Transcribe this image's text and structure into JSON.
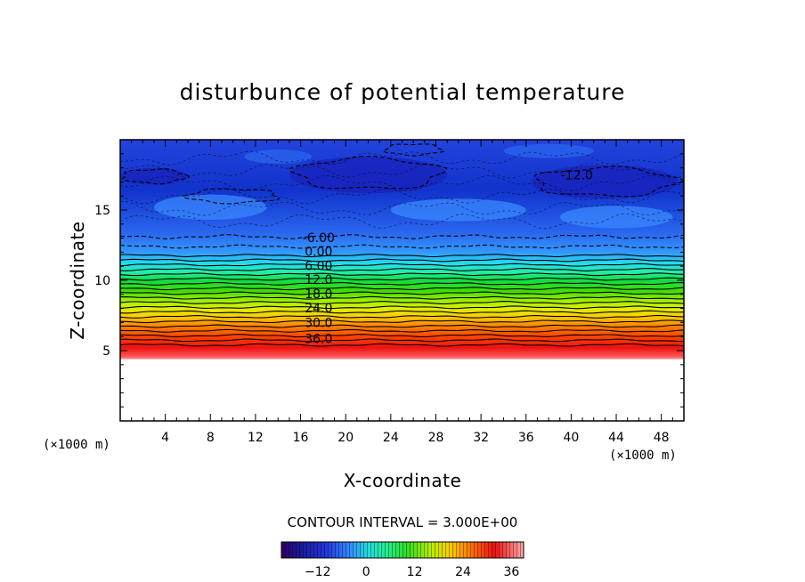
{
  "chart_data": {
    "type": "contour",
    "title": "disturbunce of potential temperature",
    "xlabel": "X-coordinate",
    "ylabel": "Z-coordinate",
    "x_unit": "(×1000 m)",
    "z_unit": "(×1000 m)",
    "xlim": [
      0,
      50
    ],
    "ylim": [
      0,
      20
    ],
    "x_ticks": [
      4,
      8,
      12,
      16,
      20,
      24,
      28,
      32,
      36,
      40,
      44,
      48
    ],
    "y_ticks": [
      5,
      10,
      15
    ],
    "contour_interval_text": "CONTOUR INTERVAL = 3.000E+00",
    "contour_interval": 3.0,
    "contour_labels": [
      {
        "text": "36.0",
        "x": 17.6,
        "z": 5.85
      },
      {
        "text": "30.0",
        "x": 17.6,
        "z": 7.0
      },
      {
        "text": "24.0",
        "x": 17.6,
        "z": 8.05
      },
      {
        "text": "18.0",
        "x": 17.6,
        "z": 9.05
      },
      {
        "text": "12.0",
        "x": 17.6,
        "z": 10.05
      },
      {
        "text": "6.00",
        "x": 17.6,
        "z": 11.05
      },
      {
        "text": "0.00",
        "x": 17.6,
        "z": 12.05
      },
      {
        "text": "-6.00",
        "x": 17.6,
        "z": 13.05
      },
      {
        "text": "-12.0",
        "x": 40.5,
        "z": 17.5
      }
    ],
    "colorbar": {
      "min": -21,
      "max": 39,
      "tick_values": [
        -12,
        0,
        12,
        24,
        36
      ],
      "tick_labels": [
        "−12",
        "0",
        "12",
        "24",
        "36"
      ]
    },
    "field_profile": [
      {
        "z": 5.2,
        "value": 39
      },
      {
        "z": 6.0,
        "value": 36
      },
      {
        "z": 7.0,
        "value": 30
      },
      {
        "z": 8.0,
        "value": 24
      },
      {
        "z": 9.0,
        "value": 18
      },
      {
        "z": 10.0,
        "value": 12
      },
      {
        "z": 11.0,
        "value": 6
      },
      {
        "z": 12.0,
        "value": 0
      },
      {
        "z": 13.0,
        "value": -6
      },
      {
        "z": 15.0,
        "value": -10
      },
      {
        "z": 17.5,
        "value": -13
      },
      {
        "z": 20.0,
        "value": -11
      }
    ],
    "no_data_below_z": 5.2
  }
}
